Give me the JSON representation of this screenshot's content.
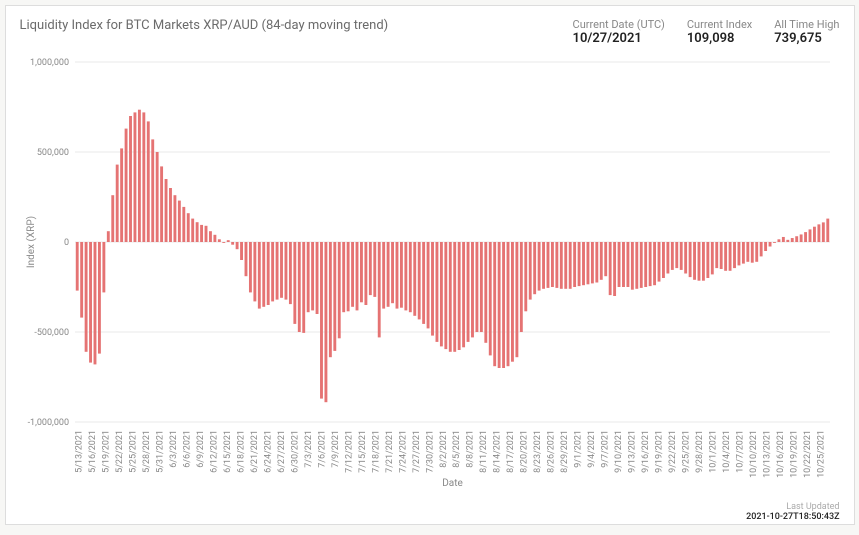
{
  "title": "Liquidity Index for BTC Markets XRP/AUD (84-day moving trend)",
  "header_stats": {
    "current_date_label": "Current Date (UTC)",
    "current_date_value": "10/27/2021",
    "current_index_label": "Current Index",
    "current_index_value": "109,098",
    "all_time_high_label": "All Time High",
    "all_time_high_value": "739,675"
  },
  "footer": {
    "last_updated_label": "Last Updated",
    "last_updated_value": "2021-10-27T18:50:43Z"
  },
  "chart": {
    "type": "bar",
    "ylabel": "Index (XRP)",
    "xlabel": "Date",
    "ylim": [
      -1000000,
      1000000
    ],
    "ytick_step": 500000,
    "yticks_labels": [
      "-1,000,000",
      "-500,000",
      "0",
      "500,000",
      "1,000,000"
    ],
    "bar_color": "#e57373",
    "background_color": "#ffffff",
    "grid_color": "#e9e9e9",
    "text_color": "#888888",
    "bar_width_ratio": 0.65,
    "axis_label_fontsize": 10,
    "tick_fontsize": 9,
    "categories": [
      "5/13/2021",
      "5/16/2021",
      "5/19/2021",
      "5/22/2021",
      "5/25/2021",
      "5/28/2021",
      "5/31/2021",
      "6/3/2021",
      "6/6/2021",
      "6/9/2021",
      "6/12/2021",
      "6/15/2021",
      "6/18/2021",
      "6/21/2021",
      "6/24/2021",
      "6/27/2021",
      "6/30/2021",
      "7/3/2021",
      "7/6/2021",
      "7/9/2021",
      "7/12/2021",
      "7/15/2021",
      "7/18/2021",
      "7/21/2021",
      "7/24/2021",
      "7/27/2021",
      "7/30/2021",
      "8/2/2021",
      "8/5/2021",
      "8/8/2021",
      "8/11/2021",
      "8/14/2021",
      "8/17/2021",
      "8/20/2021",
      "8/23/2021",
      "8/26/2021",
      "8/29/2021",
      "9/1/2021",
      "9/4/2021",
      "9/7/2021",
      "9/10/2021",
      "9/13/2021",
      "9/16/2021",
      "9/19/2021",
      "9/22/2021",
      "9/25/2021",
      "9/28/2021",
      "10/1/2021",
      "10/4/2021",
      "10/7/2021",
      "10/10/2021",
      "10/13/2021",
      "10/16/2021",
      "10/19/2021",
      "10/22/2021",
      "10/25/2021"
    ],
    "values": [
      -270000,
      -420000,
      -610000,
      -670000,
      -680000,
      -620000,
      -280000,
      60000,
      260000,
      430000,
      520000,
      630000,
      700000,
      720000,
      735000,
      720000,
      670000,
      570000,
      500000,
      420000,
      350000,
      300000,
      260000,
      230000,
      195000,
      160000,
      130000,
      110000,
      95000,
      90000,
      60000,
      40000,
      15000,
      -5000,
      10000,
      -15000,
      -40000,
      -100000,
      -190000,
      -280000,
      -330000,
      -370000,
      -360000,
      -350000,
      -330000,
      -320000,
      -310000,
      -320000,
      -345000,
      -455000,
      -500000,
      -505000,
      -390000,
      -380000,
      -400000,
      -870000,
      -890000,
      -640000,
      -605000,
      -535000,
      -390000,
      -385000,
      -360000,
      -380000,
      -335000,
      -350000,
      -295000,
      -305000,
      -530000,
      -370000,
      -360000,
      -340000,
      -370000,
      -365000,
      -380000,
      -390000,
      -410000,
      -430000,
      -455000,
      -480000,
      -520000,
      -555000,
      -580000,
      -595000,
      -610000,
      -610000,
      -600000,
      -585000,
      -555000,
      -530000,
      -500000,
      -500000,
      -560000,
      -630000,
      -690000,
      -700000,
      -700000,
      -690000,
      -665000,
      -640000,
      -500000,
      -385000,
      -320000,
      -290000,
      -270000,
      -260000,
      -255000,
      -250000,
      -255000,
      -260000,
      -260000,
      -260000,
      -250000,
      -245000,
      -240000,
      -235000,
      -230000,
      -225000,
      -210000,
      -190000,
      -295000,
      -300000,
      -250000,
      -250000,
      -250000,
      -265000,
      -260000,
      -255000,
      -250000,
      -245000,
      -240000,
      -220000,
      -200000,
      -175000,
      -155000,
      -145000,
      -155000,
      -175000,
      -195000,
      -210000,
      -215000,
      -215000,
      -200000,
      -180000,
      -145000,
      -150000,
      -160000,
      -160000,
      -145000,
      -130000,
      -120000,
      -110000,
      -115000,
      -110000,
      -80000,
      -50000,
      -25000,
      -5000,
      15000,
      28000,
      12000,
      22000,
      32000,
      42000,
      55000,
      70000,
      85000,
      98000,
      109000,
      130000
    ]
  }
}
